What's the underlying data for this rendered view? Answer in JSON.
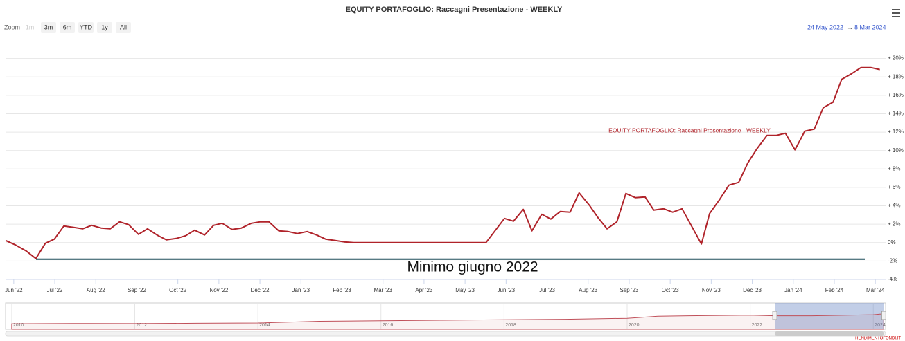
{
  "chart_data": {
    "type": "line",
    "title": "EQUITY PORTAFOGLIO: Raccagni Presentazione - WEEKLY",
    "range_selector": {
      "label": "Zoom",
      "buttons": [
        "1m",
        "3m",
        "6m",
        "YTD",
        "1y",
        "All"
      ]
    },
    "date_range": {
      "from": "24 May 2022",
      "separator": "→",
      "to": "8 Mar 2024"
    },
    "credits": "RENDIMENTOFONDI.IT",
    "xlim": [
      -0.2,
      21.25
    ],
    "xticks": [
      {
        "value": 0,
        "label": "Jun '22"
      },
      {
        "value": 1,
        "label": "Jul '22"
      },
      {
        "value": 2,
        "label": "Aug '22"
      },
      {
        "value": 3,
        "label": "Sep '22"
      },
      {
        "value": 4,
        "label": "Oct '22"
      },
      {
        "value": 5,
        "label": "Nov '22"
      },
      {
        "value": 6,
        "label": "Dec '22"
      },
      {
        "value": 7,
        "label": "Jan '23"
      },
      {
        "value": 8,
        "label": "Feb '23"
      },
      {
        "value": 9,
        "label": "Mar '23"
      },
      {
        "value": 10,
        "label": "Apr '23"
      },
      {
        "value": 11,
        "label": "May '23"
      },
      {
        "value": 12,
        "label": "Jun '23"
      },
      {
        "value": 13,
        "label": "Jul '23"
      },
      {
        "value": 14,
        "label": "Aug '23"
      },
      {
        "value": 15,
        "label": "Sep '23"
      },
      {
        "value": 16,
        "label": "Oct '23"
      },
      {
        "value": 17,
        "label": "Nov '23"
      },
      {
        "value": 18,
        "label": "Dec '23"
      },
      {
        "value": 19,
        "label": "Jan '24"
      },
      {
        "value": 20,
        "label": "Feb '24"
      },
      {
        "value": 21,
        "label": "Mar '24"
      }
    ],
    "ylim": [
      -4,
      22
    ],
    "yticks": [
      {
        "value": -4,
        "label": "-4%"
      },
      {
        "value": -2,
        "label": "-2%"
      },
      {
        "value": 0,
        "label": "0%"
      },
      {
        "value": 2,
        "label": "+ 2%"
      },
      {
        "value": 4,
        "label": "+ 4%"
      },
      {
        "value": 6,
        "label": "+ 6%"
      },
      {
        "value": 8,
        "label": "+ 8%"
      },
      {
        "value": 10,
        "label": "+ 10%"
      },
      {
        "value": 12,
        "label": "+ 12%"
      },
      {
        "value": 14,
        "label": "+ 14%"
      },
      {
        "value": 16,
        "label": "+ 16%"
      },
      {
        "value": 18,
        "label": "+ 18%"
      },
      {
        "value": 20,
        "label": "+ 20%"
      }
    ],
    "grid": true,
    "series": [
      {
        "name": "EQUITY PORTAFOGLIO: Raccagni Presentazione - WEEKLY",
        "color": "#b0232a",
        "x": [
          -0.2,
          0.03,
          0.3,
          0.54,
          0.77,
          0.99,
          1.22,
          1.46,
          1.68,
          1.9,
          2.13,
          2.35,
          2.58,
          2.8,
          3.04,
          3.26,
          3.49,
          3.72,
          3.96,
          4.19,
          4.41,
          4.65,
          4.87,
          5.08,
          5.32,
          5.55,
          5.79,
          6.01,
          6.22,
          6.46,
          6.69,
          6.91,
          7.15,
          7.38,
          7.6,
          7.84,
          8.05,
          8.29,
          11.51,
          11.96,
          12.18,
          12.42,
          12.63,
          12.87,
          13.09,
          13.32,
          13.56,
          13.78,
          14.03,
          14.24,
          14.46,
          14.7,
          14.92,
          15.15,
          15.39,
          15.6,
          15.84,
          16.06,
          16.29,
          16.76,
          16.96,
          17.2,
          17.43,
          17.67,
          17.89,
          18.12,
          18.36,
          18.59,
          18.81,
          19.04,
          19.28,
          19.51,
          19.73,
          19.97,
          20.18,
          20.42,
          20.65,
          20.89,
          21.11
        ],
        "values": [
          0.23,
          -0.23,
          -0.9,
          -1.73,
          -0.08,
          0.38,
          1.8,
          1.65,
          1.5,
          1.88,
          1.58,
          1.5,
          2.26,
          1.95,
          0.9,
          1.5,
          0.83,
          0.3,
          0.45,
          0.75,
          1.35,
          0.83,
          1.88,
          2.1,
          1.43,
          1.58,
          2.1,
          2.26,
          2.26,
          1.28,
          1.2,
          0.98,
          1.2,
          0.83,
          0.38,
          0.23,
          0.08,
          0,
          0,
          2.63,
          2.33,
          3.61,
          1.28,
          3.08,
          2.56,
          3.38,
          3.31,
          5.41,
          4.06,
          2.71,
          1.5,
          2.26,
          5.34,
          4.89,
          4.96,
          3.53,
          3.68,
          3.31,
          3.68,
          -0.15,
          3.16,
          4.66,
          6.24,
          6.54,
          8.65,
          10.23,
          11.65,
          11.65,
          11.88,
          10.08,
          12.11,
          12.33,
          14.66,
          15.26,
          17.74,
          18.35,
          19.02,
          19.02,
          18.8
        ]
      }
    ],
    "annotation": {
      "value": -1.8,
      "label": "Minimo giugno 2022",
      "color": "#1f4e5a"
    },
    "navigator": {
      "xlim": [
        2009.9,
        2024.2
      ],
      "xticks": [
        2010,
        2012,
        2014,
        2016,
        2018,
        2020,
        2022,
        2024
      ],
      "ylim": [
        -10,
        40
      ],
      "x": [
        2010,
        2011,
        2012,
        2013,
        2014,
        2015,
        2016,
        2017,
        2018,
        2019,
        2020,
        2020.5,
        2021,
        2022,
        2022.4,
        2023,
        2024,
        2024.17
      ],
      "values": [
        1,
        1.5,
        1.2,
        2,
        2.5,
        6,
        7,
        8,
        9,
        10,
        12,
        16,
        17,
        18,
        17,
        17,
        19,
        21
      ],
      "selection": [
        2022.4,
        2024.17
      ]
    }
  }
}
